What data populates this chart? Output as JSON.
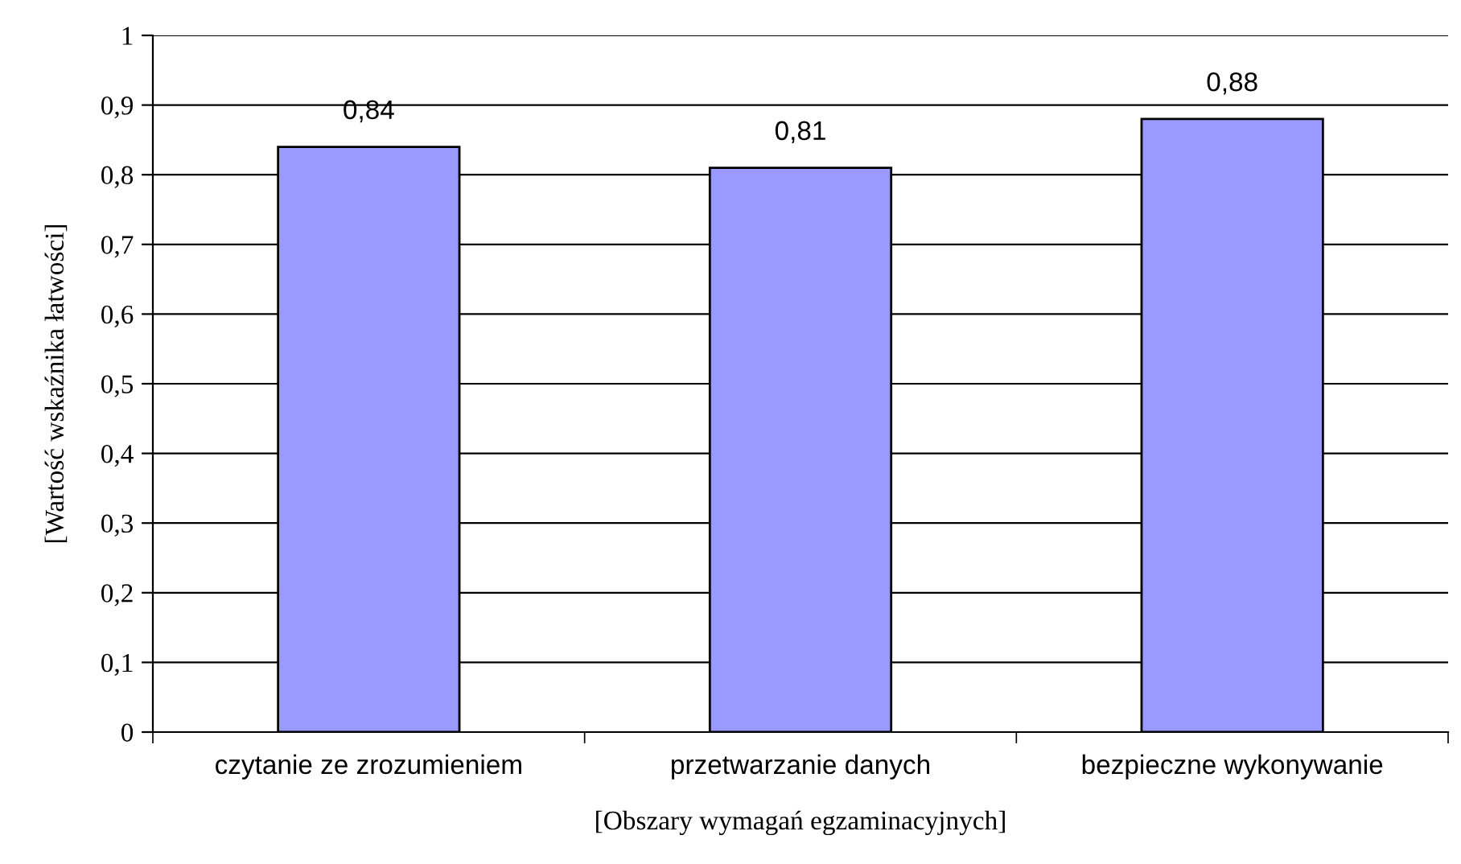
{
  "chart_data": {
    "type": "bar",
    "xlabel": "[Obszary wymagań egzaminacyjnych]",
    "ylabel": "[Wartość wskaźnika łatwości]",
    "categories": [
      "czytanie ze zrozumieniem",
      "przetwarzanie danych",
      "bezpieczne wykonywanie"
    ],
    "values": [
      0.84,
      0.81,
      0.88
    ],
    "value_labels": [
      "0,84",
      "0,81",
      "0,88"
    ],
    "color": "#9999ff",
    "ylim": [
      0,
      1
    ],
    "yticks": [
      0,
      {
        "value": 0.1,
        "label": "0,1"
      },
      {
        "value": 0.2,
        "label": "0,2"
      },
      {
        "value": 0.3,
        "label": "0,3"
      },
      {
        "value": 0.4,
        "label": "0,4"
      },
      {
        "value": 0.5,
        "label": "0,5"
      },
      {
        "value": 0.6,
        "label": "0,6"
      },
      {
        "value": 0.7,
        "label": "0,7"
      },
      {
        "value": 0.8,
        "label": "0,8"
      },
      {
        "value": 0.9,
        "label": "0,9"
      },
      1
    ],
    "grid": "y"
  }
}
